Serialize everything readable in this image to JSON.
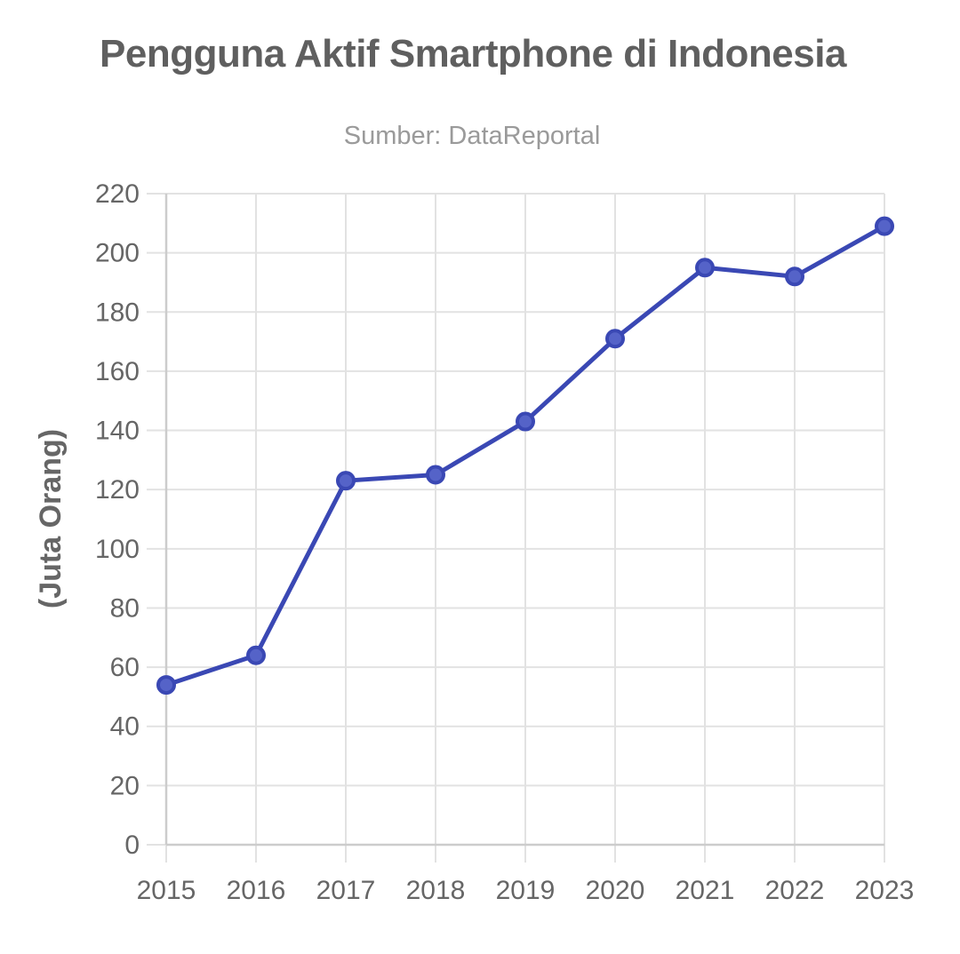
{
  "chart_data": {
    "type": "line",
    "title": "Pengguna Aktif Smartphone di Indonesia",
    "subtitle": "Sumber: DataReportal",
    "xlabel": "",
    "ylabel": "(Juta Orang)",
    "categories": [
      "2015",
      "2016",
      "2017",
      "2018",
      "2019",
      "2020",
      "2021",
      "2022",
      "2023"
    ],
    "series": [
      {
        "values": [
          54,
          64,
          123,
          125,
          143,
          171,
          195,
          192,
          209
        ]
      }
    ],
    "ylim": [
      0,
      220
    ],
    "yticks": [
      "0",
      "20",
      "40",
      "60",
      "80",
      "100",
      "120",
      "140",
      "160",
      "180",
      "200",
      "220"
    ],
    "grid": true,
    "legend": "none",
    "colors": {
      "line": "#3a48b4",
      "marker_fill": "#5563c8",
      "grid": "#e2e2e2",
      "axis": "#cccccc",
      "title": "#5f5f5f",
      "subtitle": "#9a9a9a",
      "ticks": "#666666"
    }
  }
}
